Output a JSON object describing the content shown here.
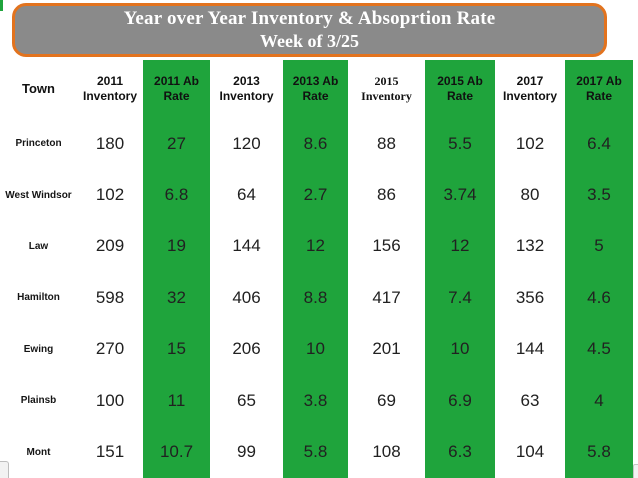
{
  "colors": {
    "green": "#1FA43C",
    "title_bg": "#8A8A8A",
    "title_border": "#E2731E"
  },
  "title": {
    "line1": "Year over Year Inventory & Absoprtion Rate",
    "line2": "Week of 3/25"
  },
  "table": {
    "columns": [
      {
        "line1": "Town",
        "line2": ""
      },
      {
        "line1": "2011",
        "line2": "Inventory"
      },
      {
        "line1": "2011 Ab",
        "line2": "Rate"
      },
      {
        "line1": "2013",
        "line2": "Inventory"
      },
      {
        "line1": "2013 Ab",
        "line2": "Rate"
      },
      {
        "line1": "2015",
        "line2": "Inventory"
      },
      {
        "line1": "2015 Ab",
        "line2": "Rate"
      },
      {
        "line1": "2017",
        "line2": "Inventory"
      },
      {
        "line1": "2017 Ab",
        "line2": "Rate"
      }
    ],
    "rows": [
      {
        "town": "Princeton",
        "values": [
          "180",
          "27",
          "120",
          "8.6",
          "88",
          "5.5",
          "102",
          "6.4"
        ]
      },
      {
        "town": "West Windsor",
        "values": [
          "102",
          "6.8",
          "64",
          "2.7",
          "86",
          "3.74",
          "80",
          "3.5"
        ]
      },
      {
        "town": "Law",
        "values": [
          "209",
          "19",
          "144",
          "12",
          "156",
          "12",
          "132",
          "5"
        ]
      },
      {
        "town": "Hamilton",
        "values": [
          "598",
          "32",
          "406",
          "8.8",
          "417",
          "7.4",
          "356",
          "4.6"
        ]
      },
      {
        "town": "Ewing",
        "values": [
          "270",
          "15",
          "206",
          "10",
          "201",
          "10",
          "144",
          "4.5"
        ]
      },
      {
        "town": "Plainsb",
        "values": [
          "100",
          "11",
          "65",
          "3.8",
          "69",
          "6.9",
          "63",
          "4"
        ]
      },
      {
        "town": "Mont",
        "values": [
          "151",
          "10.7",
          "99",
          "5.8",
          "108",
          "6.3",
          "104",
          "5.8"
        ]
      }
    ]
  }
}
